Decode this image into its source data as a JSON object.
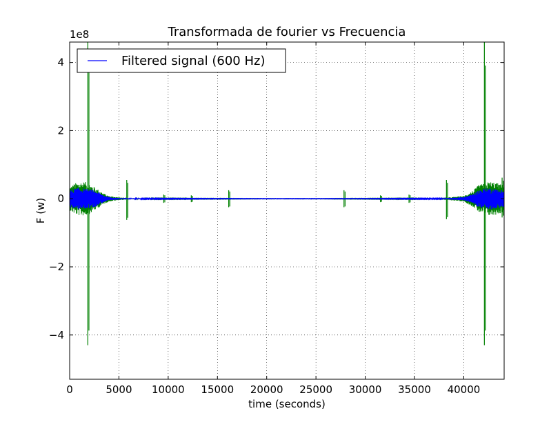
{
  "chart_data": {
    "type": "line",
    "title": "Transformada de fourier vs Frecuencia",
    "xlabel": "time (seconds)",
    "ylabel": "F (w)",
    "y_exponent_label": "1e8",
    "y_scale_factor": 100000000,
    "xlim": [
      0,
      44100
    ],
    "ylim": [
      -5.3,
      4.6
    ],
    "x_ticks": [
      0,
      5000,
      10000,
      15000,
      20000,
      25000,
      30000,
      35000,
      40000
    ],
    "x_tick_labels": [
      "0",
      "5000",
      "10000",
      "15000",
      "20000",
      "25000",
      "30000",
      "35000",
      "40000"
    ],
    "y_ticks": [
      -4,
      -2,
      0,
      2,
      4
    ],
    "y_tick_labels": [
      "−4",
      "−2",
      "0",
      "2",
      "4"
    ],
    "grid": true,
    "legend": {
      "placement": "top-left",
      "entries": [
        {
          "name": "Filtered signal (600 Hz)",
          "color": "#0000ff"
        }
      ]
    },
    "series": [
      {
        "name": "Filtered signal (600 Hz)",
        "color": "#0000ff",
        "envelope": [
          [
            0,
            0.25
          ],
          [
            500,
            0.3
          ],
          [
            1000,
            0.33
          ],
          [
            1500,
            0.3
          ],
          [
            2000,
            0.28
          ],
          [
            2500,
            0.25
          ],
          [
            3000,
            0.18
          ],
          [
            3500,
            0.1
          ],
          [
            4000,
            0.05
          ],
          [
            5000,
            0.02
          ],
          [
            6000,
            0.015
          ],
          [
            8000,
            0.01
          ],
          [
            10000,
            0.008
          ],
          [
            15000,
            0.005
          ],
          [
            20000,
            0.004
          ],
          [
            25000,
            0.004
          ],
          [
            30000,
            0.005
          ],
          [
            35000,
            0.008
          ],
          [
            38000,
            0.012
          ],
          [
            40000,
            0.05
          ],
          [
            41000,
            0.15
          ],
          [
            41500,
            0.25
          ],
          [
            42000,
            0.3
          ],
          [
            42500,
            0.33
          ],
          [
            43000,
            0.3
          ],
          [
            43500,
            0.28
          ],
          [
            44100,
            0.25
          ]
        ]
      },
      {
        "color": "#008000",
        "envelope": [
          [
            0,
            0.35
          ],
          [
            500,
            0.45
          ],
          [
            1000,
            0.5
          ],
          [
            1500,
            0.5
          ],
          [
            2000,
            0.45
          ],
          [
            2500,
            0.35
          ],
          [
            3000,
            0.25
          ],
          [
            3500,
            0.15
          ],
          [
            4000,
            0.08
          ],
          [
            5000,
            0.04
          ],
          [
            5500,
            0.03
          ],
          [
            6000,
            0.02
          ],
          [
            7000,
            0.015
          ],
          [
            9000,
            0.01
          ],
          [
            12000,
            0.008
          ],
          [
            16000,
            0.006
          ],
          [
            20000,
            0.004
          ],
          [
            25000,
            0.004
          ],
          [
            28000,
            0.006
          ],
          [
            32000,
            0.008
          ],
          [
            35000,
            0.01
          ],
          [
            37000,
            0.02
          ],
          [
            38500,
            0.04
          ],
          [
            40000,
            0.08
          ],
          [
            41000,
            0.25
          ],
          [
            41500,
            0.4
          ],
          [
            42000,
            0.45
          ],
          [
            42500,
            0.5
          ],
          [
            43000,
            0.5
          ],
          [
            43500,
            0.45
          ],
          [
            44100,
            0.4
          ]
        ],
        "spikes": [
          {
            "x": 1900,
            "min": -4.3,
            "max": 4.6
          },
          {
            "x": 5850,
            "min": -0.62,
            "max": 0.55
          },
          {
            "x": 9600,
            "min": -0.12,
            "max": 0.12
          },
          {
            "x": 12400,
            "min": -0.1,
            "max": 0.1
          },
          {
            "x": 16200,
            "min": -0.25,
            "max": 0.25
          },
          {
            "x": 27900,
            "min": -0.25,
            "max": 0.25
          },
          {
            "x": 31600,
            "min": -0.1,
            "max": 0.1
          },
          {
            "x": 34500,
            "min": -0.12,
            "max": 0.12
          },
          {
            "x": 38300,
            "min": -0.6,
            "max": 0.55
          },
          {
            "x": 42150,
            "min": -4.3,
            "max": 4.6
          },
          {
            "x": 43950,
            "min": -0.55,
            "max": 0.62
          }
        ]
      }
    ]
  }
}
